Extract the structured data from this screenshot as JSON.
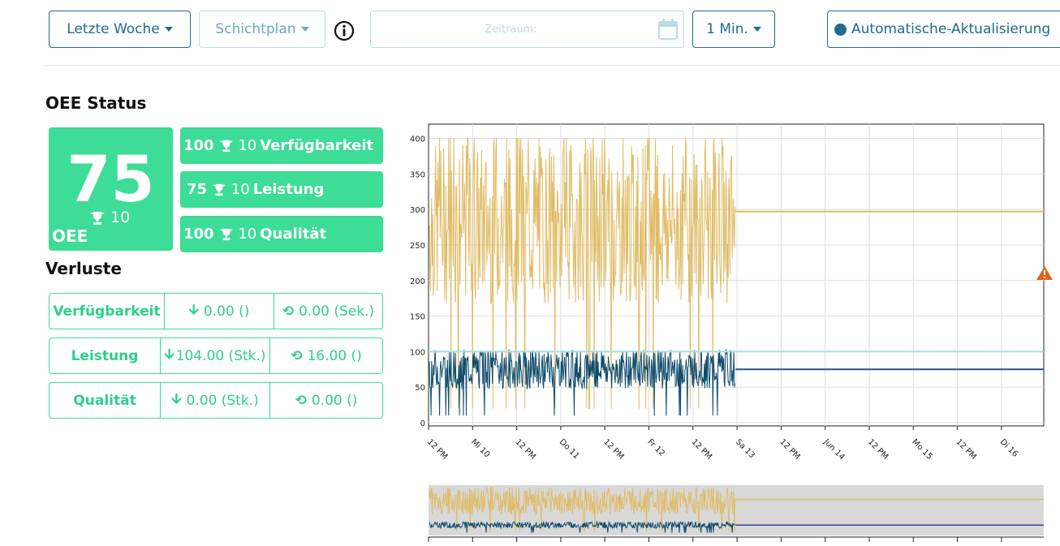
{
  "toolbar": {
    "range_label": "Letzte Woche",
    "plan_label": "Schichtplan",
    "date_placeholder": "Zeitraum:",
    "interval_label": "1 Min.",
    "auto_refresh_label": "Automatische-Aktualisierung"
  },
  "oee_status": {
    "title": "OEE Status",
    "oee": {
      "value": "75",
      "target": "10",
      "label": "OEE"
    },
    "items": [
      {
        "value": "100",
        "target": "10",
        "label": "Verfügbarkeit"
      },
      {
        "value": "75",
        "target": "10",
        "label": "Leistung"
      },
      {
        "value": "100",
        "target": "10",
        "label": "Qualität"
      }
    ]
  },
  "losses": {
    "title": "Verluste",
    "rows": [
      {
        "label": "Verfügbarkeit",
        "loss": "0.00 ()",
        "time": "0.00 (Sek.)"
      },
      {
        "label": "Leistung",
        "loss": "104.00 (Stk.)",
        "time": "16.00 ()"
      },
      {
        "label": "Qualität",
        "loss": "0.00 (Stk.)",
        "time": "0.00 ()"
      }
    ]
  },
  "colors": {
    "accent": "#1e6b8e",
    "green": "#3ddc97",
    "series_gold": "#e0bc66",
    "series_navy": "#0f4c6b",
    "series_lightblue": "#a8dde3",
    "series_blue": "#2c4f8a",
    "warning": "#e0621e"
  },
  "icons": {
    "info": "info-circle-icon",
    "calendar": "calendar-icon",
    "trophy": "trophy-icon",
    "down_arrow": "arrow-down-icon",
    "history": "history-icon",
    "warning": "warning-triangle-icon"
  },
  "chart_data": {
    "type": "line",
    "y_ticks": [
      "0",
      "50",
      "100",
      "150",
      "200",
      "250",
      "300",
      "350",
      "400"
    ],
    "ylim": [
      0,
      420
    ],
    "x_ticks": [
      "12 PM",
      "Mi 10",
      "12 PM",
      "Do 11",
      "12 PM",
      "Fr 12",
      "12 PM",
      "Sa 13",
      "12 PM",
      "Jun 14",
      "12 PM",
      "Mo 15",
      "12 PM",
      "Di 16"
    ],
    "grid": true,
    "series": [
      {
        "color": "#e0bc66",
        "live_range": [
          150,
          400
        ],
        "typical": 280,
        "flat_after": 297
      },
      {
        "color": "#0f4c6b",
        "live_range": [
          20,
          100
        ],
        "typical": 75,
        "flat_after": 75
      },
      {
        "color": "#a8dde3",
        "flat_value": 100
      }
    ],
    "data_end_tick": "Sa 13"
  }
}
